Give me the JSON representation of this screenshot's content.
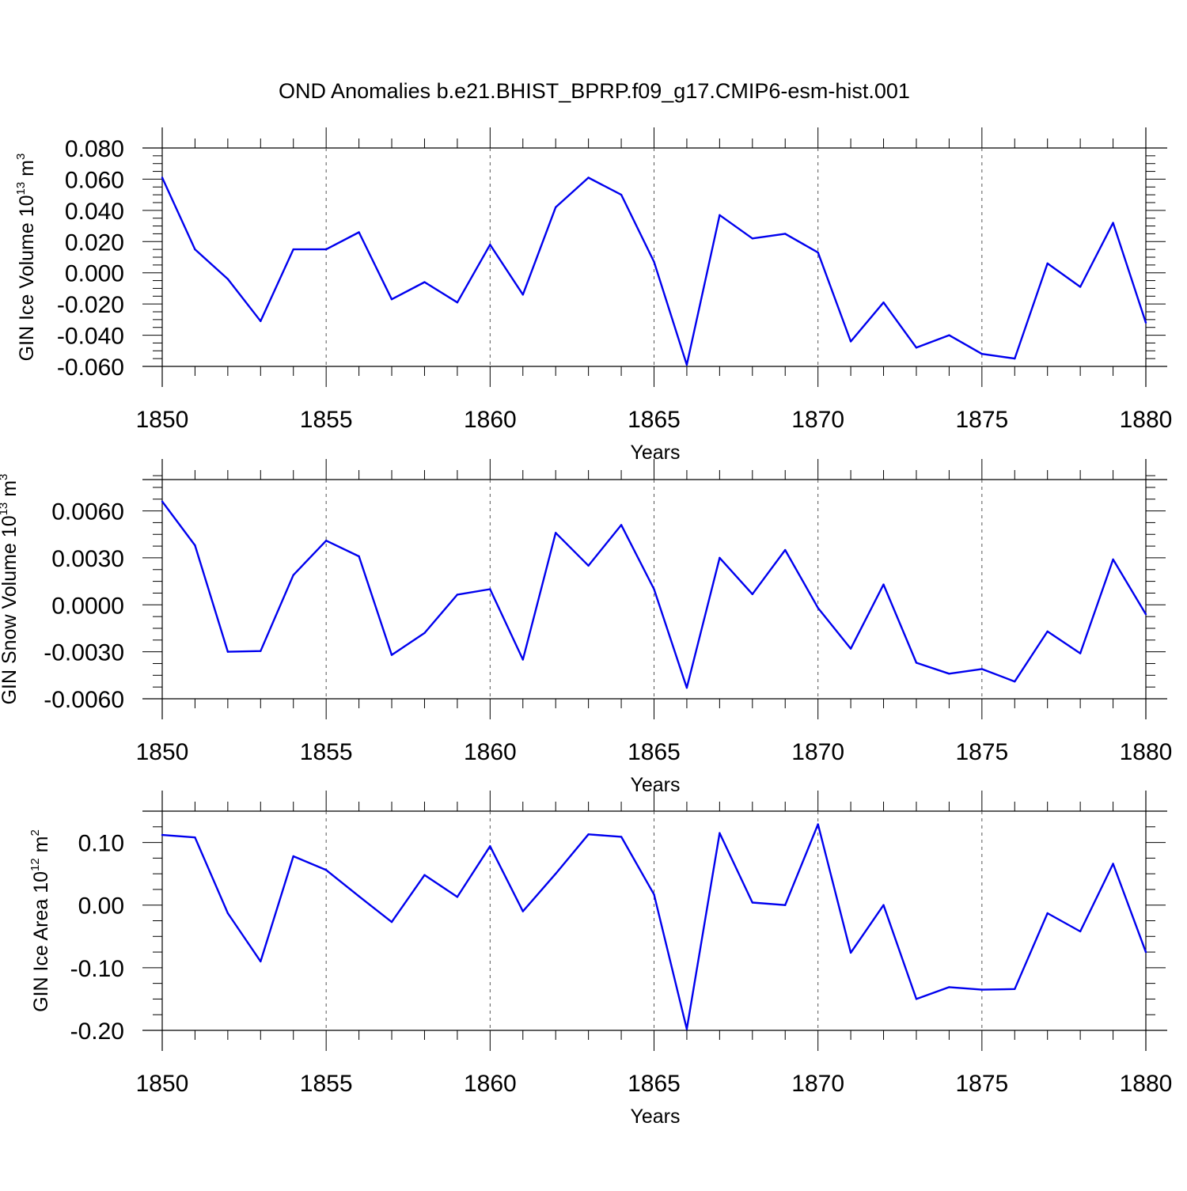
{
  "figure": {
    "title": "OND Anomalies b.e21.BHIST_BPRP.f09_g17.CMIP6-esm-hist.001",
    "line_color": "#0000ee"
  },
  "chart_data": [
    {
      "type": "line",
      "ylabel": "GIN Ice Volume 10",
      "ylabel_sup": "13",
      "ylabel_unit": " m",
      "ylabel_unit_sup": "3",
      "xlabel": "Years",
      "xlim": [
        1850,
        1880
      ],
      "ylim": [
        -0.06,
        0.08
      ],
      "yticks": [
        -0.06,
        -0.04,
        -0.02,
        0.0,
        0.02,
        0.04,
        0.06,
        0.08
      ],
      "ytick_labels": [
        "-0.060",
        "-0.040",
        "-0.020",
        "0.000",
        "0.020",
        "0.040",
        "0.060",
        "0.080"
      ],
      "xticks": [
        1850,
        1855,
        1860,
        1865,
        1870,
        1875,
        1880
      ],
      "xtick_labels": [
        "1850",
        "1855",
        "1860",
        "1865",
        "1870",
        "1875",
        "1880"
      ],
      "x": [
        1850,
        1851,
        1852,
        1853,
        1854,
        1855,
        1856,
        1857,
        1858,
        1859,
        1860,
        1861,
        1862,
        1863,
        1864,
        1865,
        1866,
        1867,
        1868,
        1869,
        1870,
        1871,
        1872,
        1873,
        1874,
        1875,
        1876,
        1877,
        1878,
        1879,
        1880
      ],
      "values": [
        0.061,
        0.015,
        -0.004,
        -0.031,
        0.015,
        0.015,
        0.026,
        -0.017,
        -0.006,
        -0.019,
        0.018,
        -0.014,
        0.042,
        0.061,
        0.05,
        0.007,
        -0.059,
        0.037,
        0.022,
        0.025,
        0.013,
        -0.044,
        -0.019,
        -0.048,
        -0.04,
        -0.052,
        -0.055,
        0.006,
        -0.009,
        0.032,
        -0.032
      ]
    },
    {
      "type": "line",
      "ylabel": "GIN Snow Volume 10",
      "ylabel_sup": "13",
      "ylabel_unit": " m",
      "ylabel_unit_sup": "3",
      "xlabel": "Years",
      "xlim": [
        1850,
        1880
      ],
      "ylim": [
        -0.006,
        0.008
      ],
      "yticks": [
        -0.006,
        -0.003,
        0.0,
        0.003,
        0.006
      ],
      "ytick_labels": [
        "-0.0060",
        "-0.0030",
        "0.0000",
        "0.0030",
        "0.0060"
      ],
      "xticks": [
        1850,
        1855,
        1860,
        1865,
        1870,
        1875,
        1880
      ],
      "xtick_labels": [
        "1850",
        "1855",
        "1860",
        "1865",
        "1870",
        "1875",
        "1880"
      ],
      "x": [
        1850,
        1851,
        1852,
        1853,
        1854,
        1855,
        1856,
        1857,
        1858,
        1859,
        1860,
        1861,
        1862,
        1863,
        1864,
        1865,
        1866,
        1867,
        1868,
        1869,
        1870,
        1871,
        1872,
        1873,
        1874,
        1875,
        1876,
        1877,
        1878,
        1879,
        1880
      ],
      "values": [
        0.0066,
        0.0038,
        -0.003,
        -0.00295,
        0.0019,
        0.0041,
        0.0031,
        -0.0032,
        -0.0018,
        0.00065,
        0.001,
        -0.0035,
        0.0046,
        0.0025,
        0.0051,
        0.001,
        -0.0053,
        0.003,
        0.00068,
        0.0035,
        -0.0002,
        -0.0028,
        0.0013,
        -0.0037,
        -0.0044,
        -0.0041,
        -0.0049,
        -0.0017,
        -0.0031,
        0.0029,
        -0.0006
      ]
    },
    {
      "type": "line",
      "ylabel": "GIN Ice Area 10",
      "ylabel_sup": "12",
      "ylabel_unit": " m",
      "ylabel_unit_sup": "2",
      "xlabel": "Years",
      "xlim": [
        1850,
        1880
      ],
      "ylim": [
        -0.2,
        0.15
      ],
      "yticks": [
        -0.2,
        -0.1,
        0.0,
        0.1
      ],
      "ytick_labels": [
        "-0.20",
        "-0.10",
        "0.00",
        "0.10"
      ],
      "xticks": [
        1850,
        1855,
        1860,
        1865,
        1870,
        1875,
        1880
      ],
      "xtick_labels": [
        "1850",
        "1855",
        "1860",
        "1865",
        "1870",
        "1875",
        "1880"
      ],
      "x": [
        1850,
        1851,
        1852,
        1853,
        1854,
        1855,
        1856,
        1857,
        1858,
        1859,
        1860,
        1861,
        1862,
        1863,
        1864,
        1865,
        1866,
        1867,
        1868,
        1869,
        1870,
        1871,
        1872,
        1873,
        1874,
        1875,
        1876,
        1877,
        1878,
        1879,
        1880
      ],
      "values": [
        0.112,
        0.108,
        -0.013,
        -0.09,
        0.078,
        0.056,
        0.014,
        -0.027,
        0.048,
        0.013,
        0.094,
        -0.01,
        0.05,
        0.113,
        0.109,
        0.017,
        -0.198,
        0.115,
        0.004,
        0.0,
        0.129,
        -0.076,
        0.0,
        -0.15,
        -0.131,
        -0.135,
        -0.134,
        -0.013,
        -0.042,
        0.066,
        -0.075
      ]
    }
  ]
}
